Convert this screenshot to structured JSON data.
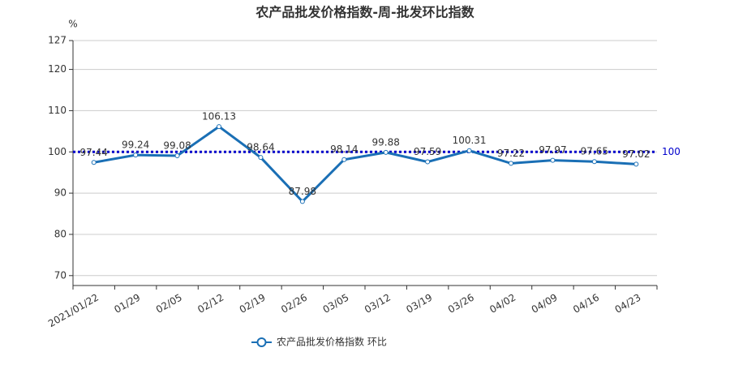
{
  "chart_data": {
    "type": "line",
    "title": "农产品批发价格指数-周-批发环比指数",
    "y_label": "%",
    "categories": [
      "2021/01/22",
      "01/29",
      "02/05",
      "02/12",
      "02/19",
      "02/26",
      "03/05",
      "03/12",
      "03/19",
      "03/26",
      "04/02",
      "04/09",
      "04/16",
      "04/23"
    ],
    "series": [
      {
        "name": "农产品批发价格指数  环比",
        "color": "#1a6fb5",
        "values": [
          97.44,
          99.24,
          99.08,
          106.13,
          98.64,
          87.98,
          98.14,
          99.88,
          97.59,
          100.31,
          97.22,
          97.97,
          97.65,
          97.02
        ]
      }
    ],
    "mark_line": {
      "value": 100,
      "color": "#0000cc"
    },
    "ylim": [
      67.6,
      127
    ],
    "yticks": [
      70,
      80,
      90,
      100,
      110,
      120,
      127
    ],
    "grid": true
  }
}
